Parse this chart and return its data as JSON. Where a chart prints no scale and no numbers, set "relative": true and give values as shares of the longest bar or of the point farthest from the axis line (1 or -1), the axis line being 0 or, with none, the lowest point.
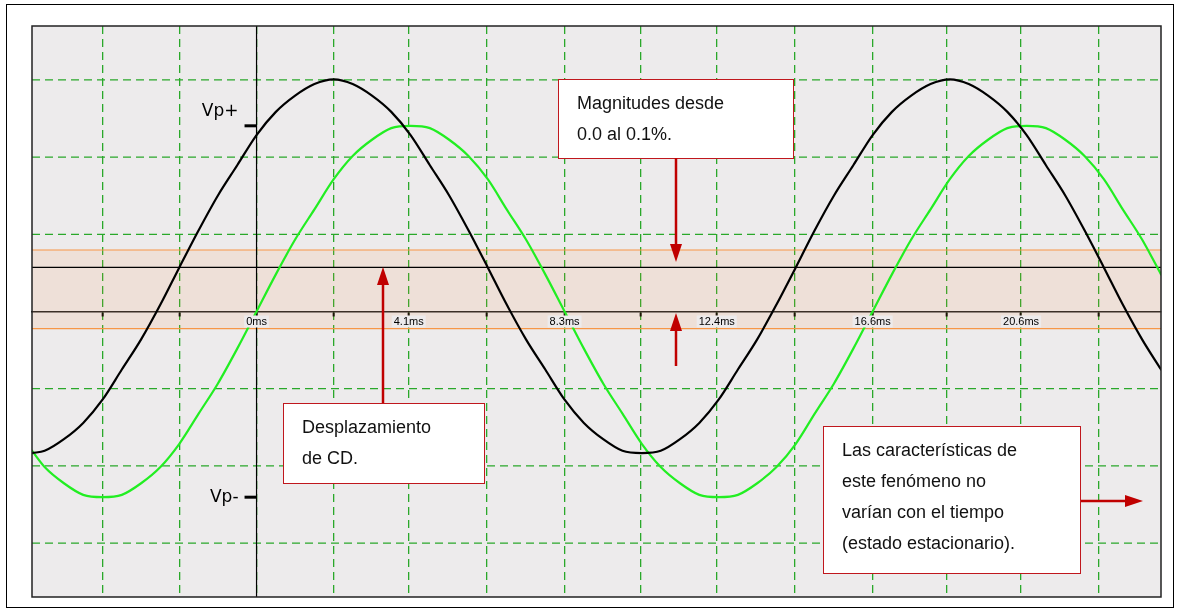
{
  "chart_data": {
    "type": "line",
    "relative": true,
    "x": [
      -6.05,
      -5.71,
      -5.19,
      -4.67,
      -4.15,
      -3.63,
      -3.11,
      -2.59,
      -2.08,
      -1.56,
      -1.04,
      -0.52,
      0,
      0.52,
      1.04,
      1.56,
      2.08,
      2.59,
      3.11,
      3.63,
      4.15,
      4.67,
      5.19,
      5.71,
      6.23,
      6.74,
      7.26,
      7.78,
      8.3,
      8.82,
      9.34,
      9.86,
      10.38,
      10.89,
      11.41,
      11.93,
      12.45,
      12.97,
      13.49,
      14.01,
      14.53,
      15.04,
      15.56,
      16.08,
      16.6,
      17.12,
      17.64,
      18.16,
      18.68,
      19.19,
      19.71,
      20.23,
      20.75,
      21.27,
      21.79,
      22.31,
      22.83,
      23.34,
      23.86,
      24.37
    ],
    "series": [
      {
        "color": "#000000",
        "values": [
          -0.61,
          -0.6,
          -0.55,
          -0.48,
          -0.38,
          -0.25,
          -0.12,
          0.03,
          0.19,
          0.35,
          0.5,
          0.63,
          0.76,
          0.86,
          0.93,
          0.98,
          1,
          0.98,
          0.93,
          0.86,
          0.76,
          0.63,
          0.5,
          0.35,
          0.19,
          0.03,
          -0.12,
          -0.25,
          -0.38,
          -0.48,
          -0.55,
          -0.6,
          -0.61,
          -0.6,
          -0.55,
          -0.48,
          -0.38,
          -0.25,
          -0.12,
          0.03,
          0.19,
          0.35,
          0.5,
          0.63,
          0.76,
          0.86,
          0.93,
          0.98,
          1,
          0.98,
          0.93,
          0.86,
          0.76,
          0.63,
          0.5,
          0.35,
          0.19,
          0.03,
          -0.12,
          -0.25
        ]
      },
      {
        "color": "#22ee22",
        "values": [
          -0.6,
          -0.67,
          -0.74,
          -0.79,
          -0.8,
          -0.79,
          -0.74,
          -0.67,
          -0.57,
          -0.44,
          -0.31,
          -0.16,
          0,
          0.16,
          0.31,
          0.44,
          0.57,
          0.67,
          0.74,
          0.79,
          0.8,
          0.79,
          0.74,
          0.67,
          0.57,
          0.44,
          0.31,
          0.16,
          0,
          -0.16,
          -0.31,
          -0.44,
          -0.57,
          -0.67,
          -0.74,
          -0.79,
          -0.8,
          -0.79,
          -0.74,
          -0.67,
          -0.57,
          -0.44,
          -0.31,
          -0.16,
          0,
          0.16,
          0.31,
          0.44,
          0.57,
          0.67,
          0.74,
          0.79,
          0.8,
          0.79,
          0.74,
          0.67,
          0.57,
          0.44,
          0.31,
          0.16
        ]
      }
    ],
    "xlim": [
      -6.05,
      24.37
    ],
    "xticks": [
      {
        "value": -4.15,
        "label": null
      },
      {
        "value": -2.07,
        "label": null
      },
      {
        "value": 0,
        "label": "0ms"
      },
      {
        "value": 2.07,
        "label": null
      },
      {
        "value": 4.1,
        "label": "4.1ms"
      },
      {
        "value": 6.2,
        "label": null
      },
      {
        "value": 8.3,
        "label": "8.3ms"
      },
      {
        "value": 10.35,
        "label": null
      },
      {
        "value": 12.4,
        "label": "12.4ms"
      },
      {
        "value": 14.5,
        "label": null
      },
      {
        "value": 16.6,
        "label": "16.6ms"
      },
      {
        "value": 18.6,
        "label": null
      },
      {
        "value": 20.6,
        "label": "20.6ms"
      },
      {
        "value": 22.7,
        "label": null
      }
    ],
    "bands": [
      {
        "axis": "y",
        "from": -0.074,
        "to": 0.265,
        "color": "#f79646"
      }
    ],
    "ref_lines": [
      {
        "axis": "y",
        "value": 0.265,
        "color": "#f79646"
      },
      {
        "axis": "y",
        "value": -0.074,
        "color": "#f79646"
      },
      {
        "axis": "y",
        "value": 0.19,
        "color": "#000000"
      },
      {
        "axis": "x",
        "value": 0,
        "color": "#000000"
      }
    ],
    "annotations": [
      {
        "text": "Vp+",
        "x": 0,
        "y": 0.8
      },
      {
        "text": "Vp-",
        "x": 0,
        "y": -0.8
      },
      "Magnitudes desde 0.0 al 0.1%.",
      "Desplazamiento de CD.",
      "Las características de este fenómeno no varían con el tiempo (estado estacionario)."
    ],
    "grid": true,
    "marker": "none",
    "line_style": "solid"
  }
}
